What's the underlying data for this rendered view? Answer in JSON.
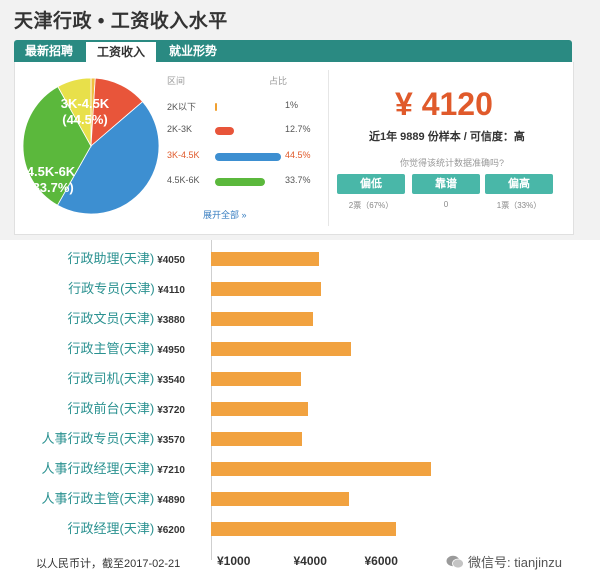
{
  "header": {
    "title": "天津行政 • 工资收入水平"
  },
  "tabs": [
    {
      "label": "最新招聘",
      "active": false
    },
    {
      "label": "工资收入",
      "active": true
    },
    {
      "label": "就业形势",
      "active": false
    }
  ],
  "pie": {
    "slices": [
      {
        "range": "2K以下",
        "pct": 1,
        "color": "#f0c040"
      },
      {
        "range": "2K-3K",
        "pct": 12.7,
        "color": "#e8553a"
      },
      {
        "range": "3K-4.5K",
        "pct": 44.5,
        "color": "#3d8fd1"
      },
      {
        "range": "4.5K-6K",
        "pct": 33.7,
        "color": "#5bb83c"
      },
      {
        "range": "other",
        "pct": 8.1,
        "color": "#e8e04a"
      }
    ],
    "label_a": "3K-4.5K",
    "label_a_pct": "(44.5%)",
    "label_b": "4.5K-6K",
    "label_b_pct": "(33.7%)"
  },
  "legend": {
    "col_range": "区间",
    "col_share": "占比",
    "rows": [
      {
        "range": "2K以下",
        "pct": "1%",
        "value": 1,
        "color": "#f0a030",
        "highlight": false
      },
      {
        "range": "2K-3K",
        "pct": "12.7%",
        "value": 12.7,
        "color": "#e8553a",
        "highlight": false
      },
      {
        "range": "3K-4.5K",
        "pct": "44.5%",
        "value": 44.5,
        "color": "#3d8fd1",
        "highlight": true
      },
      {
        "range": "4.5K-6K",
        "pct": "33.7%",
        "value": 33.7,
        "color": "#5bb83c",
        "highlight": false
      }
    ],
    "more": "展开全部 »"
  },
  "summary": {
    "salary": "¥ 4120",
    "sample": "近1年 9889 份样本 / 可信度：高",
    "question": "你觉得该统计数据准确吗?",
    "votes": [
      {
        "button": "偏低",
        "label": "2票（67%）"
      },
      {
        "button": "靠谱",
        "label": "0"
      },
      {
        "button": "偏高",
        "label": "1票（33%）"
      }
    ]
  },
  "chart_data": {
    "type": "bar",
    "orientation": "horizontal",
    "categories": [
      "行政助理(天津)",
      "行政专员(天津)",
      "行政文员(天津)",
      "行政主管(天津)",
      "行政司机(天津)",
      "行政前台(天津)",
      "人事行政专员(天津)",
      "人事行政经理(天津)",
      "人事行政主管(天津)",
      "行政经理(天津)"
    ],
    "value_labels": [
      "¥4050",
      "¥4110",
      "¥3880",
      "¥4950",
      "¥3540",
      "¥3720",
      "¥3570",
      "¥7210",
      "¥4890",
      "¥6200"
    ],
    "values": [
      4050,
      4110,
      3880,
      4950,
      3540,
      3720,
      3570,
      7210,
      4890,
      6200
    ],
    "xticks": [
      "¥1000",
      "¥4000",
      "¥6000"
    ],
    "footnote": "以人民币计，截至2017-02-21",
    "bar_color": "#f1a240"
  },
  "watermark": "微信号: tianjinzu"
}
